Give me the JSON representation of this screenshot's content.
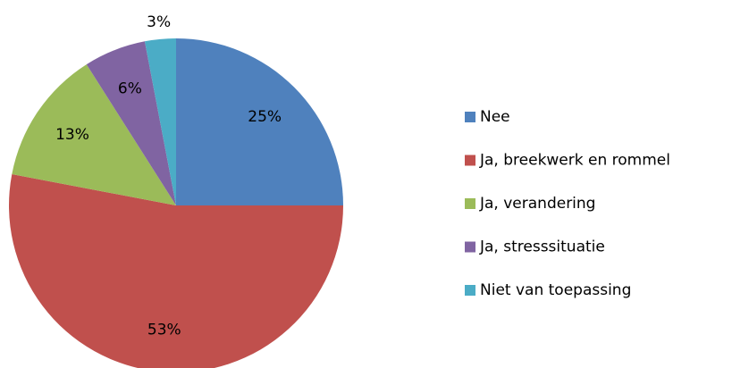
{
  "chart_data": {
    "type": "pie",
    "categories": [
      "Nee",
      "Ja, breekwerk en rommel",
      "Ja, verandering",
      "Ja, stresssituatie",
      "Niet van toepassing"
    ],
    "values": [
      25,
      53,
      13,
      6,
      3
    ],
    "value_labels": [
      "25%",
      "53%",
      "13%",
      "6%",
      "3%"
    ],
    "colors": [
      "#4f81bd",
      "#c0504d",
      "#9bbb59",
      "#8064a2",
      "#4bacc6"
    ],
    "legend": "right"
  }
}
